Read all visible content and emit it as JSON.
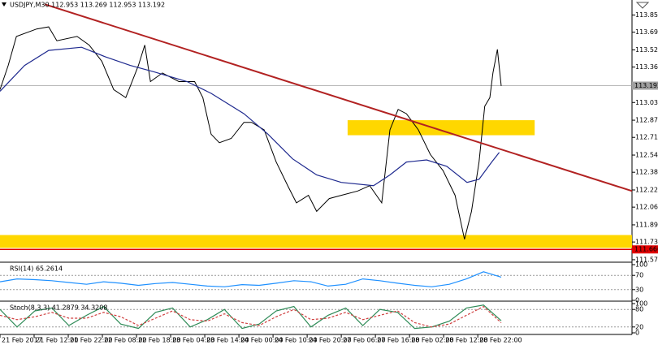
{
  "chart_data": [
    {
      "type": "line",
      "title": "USDJPY,M30  112.953 113.269 112.953 113.192",
      "xlim": [
        0,
        100
      ],
      "ylim": [
        111.63,
        113.99
      ],
      "yticks": [
        {
          "value": 113.85,
          "label": "113.850"
        },
        {
          "value": 113.69,
          "label": "113.690"
        },
        113.525,
        113.365,
        113.035,
        {
          "value": 112.87,
          "label": "112.870"
        },
        {
          "value": 112.71,
          "label": "112.710"
        },
        112.545,
        112.385,
        {
          "value": 112.22,
          "label": "112.220"
        },
        {
          "value": 112.06,
          "label": "112.060"
        },
        111.895,
        111.735,
        {
          "value": 111.57,
          "label": "111.570"
        }
      ],
      "zones": [
        {
          "color": "#ffd700",
          "x": [
            55.0,
            84.6
          ],
          "values": [
            112.73,
            112.87
          ]
        },
        {
          "color": "#ffd700",
          "x": [
            0,
            100
          ],
          "values": [
            111.68,
            111.8
          ]
        }
      ],
      "series": [
        {
          "color": "#000000",
          "x": [
            0,
            1.3,
            2.6,
            5.8,
            7.7,
            9.0,
            12.2,
            14.1,
            16.1,
            18.0,
            19.9,
            21.9,
            22.9,
            23.8,
            25.7,
            28.3,
            30.8,
            32.1,
            33.4,
            34.7,
            36.6,
            38.6,
            39.8,
            41.8,
            43.7,
            45.6,
            46.9,
            48.8,
            50.1,
            52.1,
            54.0,
            56.6,
            58.5,
            60.4,
            61.7,
            63.0,
            64.3,
            66.2,
            68.1,
            70.1,
            72.0,
            73.5,
            74.6,
            75.8,
            76.7,
            77.5,
            78.0,
            78.7,
            79.3
          ],
          "values": [
            113.155,
            113.38,
            113.65,
            113.72,
            113.74,
            113.61,
            113.65,
            113.57,
            113.42,
            113.155,
            113.08,
            113.38,
            113.57,
            113.23,
            113.31,
            113.23,
            113.23,
            113.08,
            112.74,
            112.66,
            112.7,
            112.85,
            112.85,
            112.78,
            112.48,
            112.25,
            112.1,
            112.17,
            112.02,
            112.14,
            112.17,
            112.21,
            112.26,
            112.1,
            112.78,
            112.97,
            112.93,
            112.78,
            112.55,
            112.4,
            112.17,
            111.76,
            112.02,
            112.48,
            113.0,
            113.08,
            113.31,
            113.53,
            113.19
          ]
        },
        {
          "color": "#1f2a8f",
          "x": [
            0,
            3.9,
            7.7,
            12.9,
            16.7,
            20.6,
            24.4,
            29.6,
            33.4,
            38.6,
            42.4,
            46.3,
            50.1,
            54.0,
            59.1,
            61.7,
            64.3,
            67.5,
            70.7,
            73.9,
            75.8,
            77.8,
            79.0
          ],
          "values": [
            113.14,
            113.38,
            113.52,
            113.55,
            113.46,
            113.38,
            113.32,
            113.23,
            113.12,
            112.93,
            112.74,
            112.51,
            112.36,
            112.29,
            112.26,
            112.36,
            112.48,
            112.5,
            112.44,
            112.29,
            112.32,
            112.48,
            112.57
          ]
        }
      ],
      "trendline": {
        "color": "#b22222",
        "x": [
          7.1,
          100
        ],
        "values": [
          113.95,
          112.21
        ]
      },
      "price_lines": [
        {
          "value": 113.192,
          "color": "#a0a0a0"
        },
        {
          "value": 111.666,
          "color": "#e00000"
        }
      ]
    },
    {
      "type": "line",
      "title": "RSI(14) 65.2614",
      "xlim": [
        0,
        100
      ],
      "ylim": [
        0,
        100
      ],
      "yticks": [
        100,
        70,
        30,
        0
      ],
      "grid": true,
      "series": [
        {
          "color": "#1e90ff",
          "x": [
            0,
            2.7,
            5.5,
            8.2,
            10.9,
            13.7,
            16.4,
            19.1,
            21.9,
            24.6,
            27.3,
            30.1,
            32.8,
            35.5,
            38.3,
            41.0,
            43.7,
            46.5,
            49.2,
            51.9,
            54.7,
            57.4,
            60.1,
            62.9,
            65.6,
            68.3,
            71.1,
            73.8,
            76.5,
            79.3
          ],
          "values": [
            52,
            60,
            58,
            55,
            50,
            45,
            52,
            48,
            42,
            47,
            50,
            45,
            40,
            38,
            44,
            42,
            48,
            55,
            52,
            40,
            45,
            60,
            55,
            48,
            42,
            38,
            45,
            60,
            80,
            65
          ]
        }
      ]
    },
    {
      "type": "line",
      "title": "Stoch(8,3,3) 41.2879 34.3208",
      "xlim": [
        0,
        100
      ],
      "ylim": [
        0,
        100
      ],
      "yticks": [
        100,
        80,
        20,
        0
      ],
      "grid": true,
      "series": [
        {
          "color": "#2e8b57",
          "style": "solid",
          "x": [
            0,
            2.7,
            5.5,
            8.2,
            10.9,
            13.7,
            16.4,
            19.1,
            21.9,
            24.6,
            27.3,
            30.1,
            32.8,
            35.5,
            38.3,
            41.0,
            43.7,
            46.5,
            49.2,
            51.9,
            54.7,
            57.4,
            60.1,
            62.9,
            65.6,
            68.3,
            71.1,
            73.8,
            76.5,
            79.3
          ],
          "values": [
            80,
            20,
            75,
            85,
            25,
            60,
            90,
            30,
            15,
            70,
            85,
            20,
            45,
            80,
            15,
            30,
            75,
            90,
            20,
            60,
            85,
            25,
            80,
            70,
            15,
            20,
            40,
            85,
            95,
            41.29
          ]
        },
        {
          "color": "#d04040",
          "style": "dashed",
          "x": [
            0,
            2.7,
            5.5,
            8.2,
            10.9,
            13.7,
            16.4,
            19.1,
            21.9,
            24.6,
            27.3,
            30.1,
            32.8,
            35.5,
            38.3,
            41.0,
            43.7,
            46.5,
            49.2,
            51.9,
            54.7,
            57.4,
            60.1,
            62.9,
            65.6,
            68.3,
            71.1,
            73.8,
            76.5,
            79.3
          ],
          "values": [
            60,
            45,
            55,
            70,
            50,
            50,
            70,
            55,
            25,
            50,
            75,
            45,
            40,
            65,
            35,
            25,
            55,
            80,
            45,
            50,
            70,
            45,
            60,
            75,
            35,
            20,
            30,
            60,
            90,
            34.32
          ]
        }
      ],
      "xticks": [
        {
          "value": 0,
          "label": "21 Feb 2017"
        },
        {
          "value": 5.4,
          "label": "21 Feb 12:00"
        },
        {
          "value": 10.8,
          "label": "21 Feb 22:00"
        },
        {
          "value": 16.2,
          "label": "22 Feb 08:00"
        },
        {
          "value": 21.6,
          "label": "22 Feb 18:00"
        },
        {
          "value": 27.0,
          "label": "23 Feb 04:00"
        },
        {
          "value": 32.4,
          "label": "23 Feb 14:00"
        },
        {
          "value": 37.8,
          "label": "24 Feb 00:00"
        },
        {
          "value": 43.2,
          "label": "24 Feb 10:00"
        },
        {
          "value": 48.6,
          "label": "24 Feb 20:00"
        },
        {
          "value": 54.0,
          "label": "27 Feb 06:00"
        },
        {
          "value": 59.4,
          "label": "27 Feb 16:00"
        },
        {
          "value": 64.8,
          "label": "28 Feb 02:00"
        },
        {
          "value": 70.2,
          "label": "28 Feb 12:00"
        },
        {
          "value": 75.6,
          "label": "28 Feb 22:00"
        }
      ]
    }
  ]
}
